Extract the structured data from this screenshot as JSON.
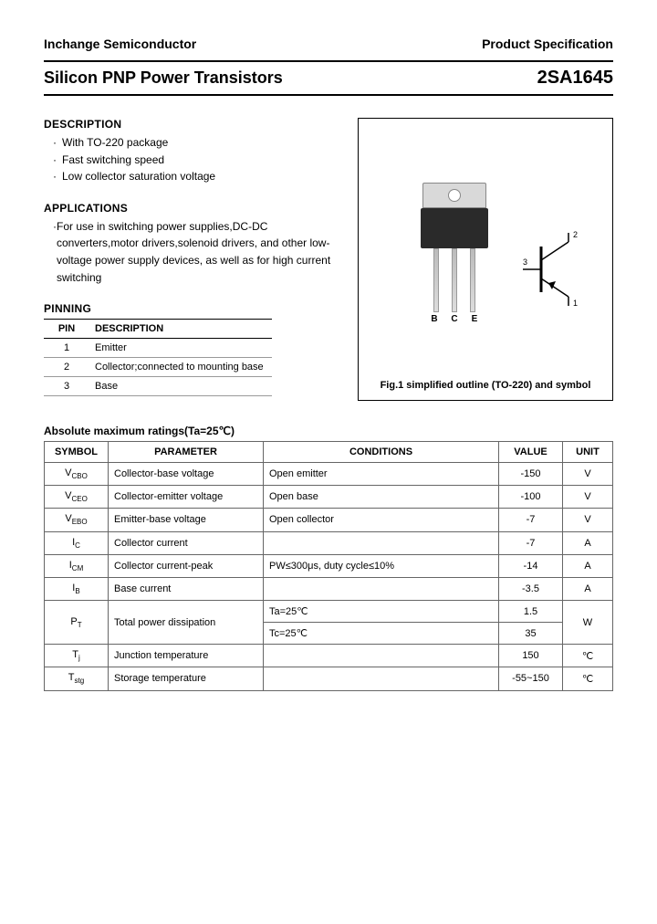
{
  "header": {
    "company": "Inchange Semiconductor",
    "docType": "Product Specification"
  },
  "title": {
    "left": "Silicon PNP Power Transistors",
    "part": "2SA1645"
  },
  "description": {
    "heading": "DESCRIPTION",
    "items": [
      "With TO-220 package",
      "Fast switching speed",
      "Low collector saturation voltage"
    ]
  },
  "applications": {
    "heading": "APPLICATIONS",
    "items": [
      "For use in switching power supplies,DC-DC converters,motor drivers,solenoid drivers, and other low-voltage power supply devices, as well as for high current switching"
    ]
  },
  "pinning": {
    "heading": "PINNING",
    "columns": [
      "PIN",
      "DESCRIPTION"
    ],
    "rows": [
      {
        "pin": "1",
        "desc": "Emitter"
      },
      {
        "pin": "2",
        "desc": "Collector;connected to mounting base"
      },
      {
        "pin": "3",
        "desc": "Base"
      }
    ]
  },
  "figure": {
    "caption": "Fig.1 simplified outline (TO-220) and symbol",
    "leadLabels": [
      "B",
      "C",
      "E"
    ],
    "symbolPins": {
      "p1": "1",
      "p2": "2",
      "p3": "3"
    }
  },
  "ratings": {
    "heading": "Absolute maximum ratings(Ta=25℃)",
    "columns": [
      "SYMBOL",
      "PARAMETER",
      "CONDITIONS",
      "VALUE",
      "UNIT"
    ],
    "rows": [
      {
        "symbol": "V",
        "sub": "CBO",
        "param": "Collector-base voltage",
        "cond": "Open emitter",
        "value": "-150",
        "unit": "V",
        "rowspan": 1
      },
      {
        "symbol": "V",
        "sub": "CEO",
        "param": "Collector-emitter voltage",
        "cond": "Open base",
        "value": "-100",
        "unit": "V",
        "rowspan": 1
      },
      {
        "symbol": "V",
        "sub": "EBO",
        "param": "Emitter-base voltage",
        "cond": "Open collector",
        "value": "-7",
        "unit": "V",
        "rowspan": 1
      },
      {
        "symbol": "I",
        "sub": "C",
        "param": "Collector current",
        "cond": "",
        "value": "-7",
        "unit": "A",
        "rowspan": 1
      },
      {
        "symbol": "I",
        "sub": "CM",
        "param": "Collector current-peak",
        "cond": "PW≤300μs, duty cycle≤10%",
        "value": "-14",
        "unit": "A",
        "rowspan": 1
      },
      {
        "symbol": "I",
        "sub": "B",
        "param": "Base current",
        "cond": "",
        "value": "-3.5",
        "unit": "A",
        "rowspan": 1
      }
    ],
    "ptRow": {
      "symbol": "P",
      "sub": "T",
      "param": "Total power dissipation",
      "cond1": "Ta=25℃",
      "val1": "1.5",
      "cond2": "Tc=25℃",
      "val2": "35",
      "unit": "W"
    },
    "tjRow": {
      "symbol": "T",
      "sub": "j",
      "param": "Junction temperature",
      "cond": "",
      "value": "150",
      "unit": "℃"
    },
    "tstgRow": {
      "symbol": "T",
      "sub": "stg",
      "param": "Storage temperature",
      "cond": "",
      "value": "-55~150",
      "unit": "℃"
    }
  },
  "colors": {
    "border": "#000000",
    "gridBorder": "#666666",
    "background": "#ffffff"
  }
}
